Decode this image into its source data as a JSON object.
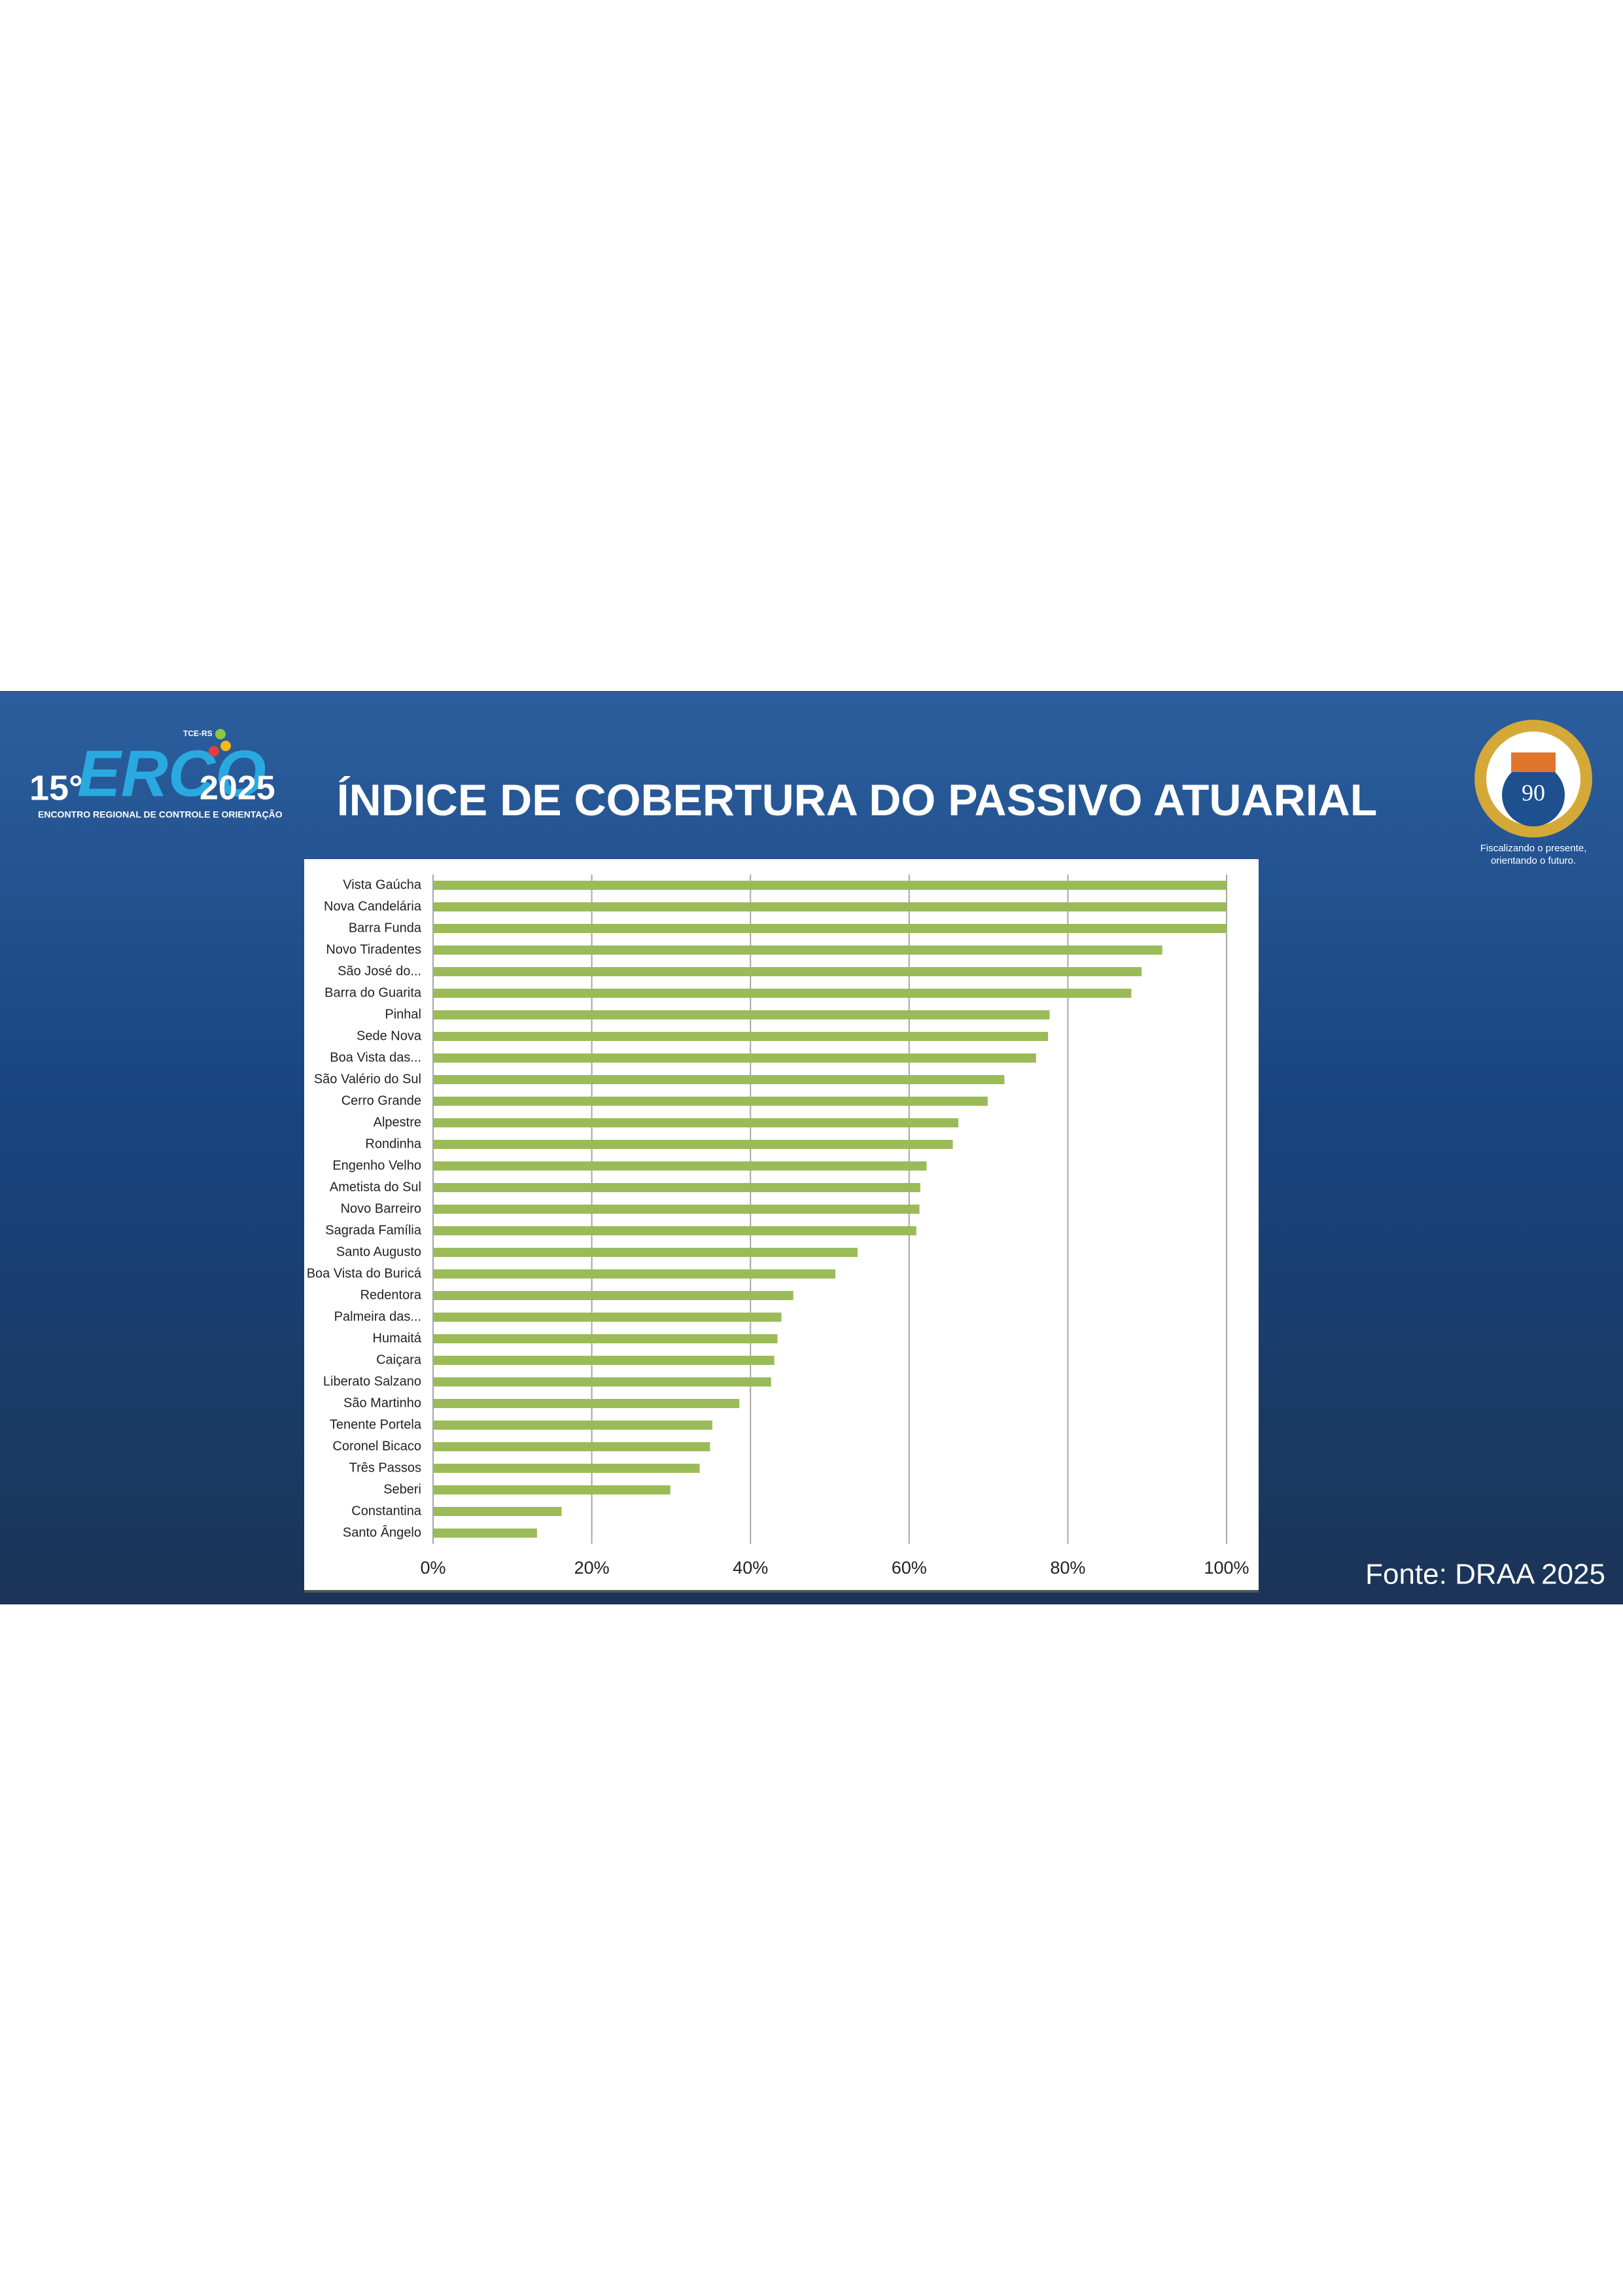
{
  "chart_data": {
    "type": "bar",
    "orientation": "horizontal",
    "title": "ÍNDICE DE COBERTURA DO PASSIVO ATUARIAL",
    "source": "Fonte: DRAA 2025",
    "categories": [
      "Vista Gaúcha",
      "Nova Candelária",
      "Barra Funda",
      "Novo Tiradentes",
      "São José do...",
      "Barra do Guarita",
      "Pinhal",
      "Sede Nova",
      "Boa Vista das...",
      "São Valério do Sul",
      "Cerro Grande",
      "Alpestre",
      "Rondinha",
      "Engenho Velho",
      "Ametista do Sul",
      "Novo Barreiro",
      "Sagrada Família",
      "Santo Augusto",
      "Boa Vista do Buricá",
      "Redentora",
      "Palmeira das...",
      "Humaitá",
      "Caiçara",
      "Liberato Salzano",
      "São Martinho",
      "Tenente Portela",
      "Coronel Bicaco",
      "Três Passos",
      "Seberi",
      "Constantina",
      "Santo Ângelo"
    ],
    "values": [
      100,
      100,
      100,
      91.9,
      89.3,
      88.0,
      77.7,
      77.5,
      76.0,
      72.0,
      69.9,
      66.2,
      65.5,
      62.2,
      61.4,
      61.3,
      60.9,
      53.5,
      50.7,
      45.4,
      43.9,
      43.4,
      43.0,
      42.6,
      38.6,
      35.2,
      34.9,
      33.6,
      29.9,
      16.2,
      13.1
    ],
    "color": "#9bbb59",
    "xlim": [
      0,
      100
    ],
    "xticks": [
      {
        "value": 0,
        "label": "0%"
      },
      {
        "value": 20,
        "label": "20%"
      },
      {
        "value": 40,
        "label": "40%"
      },
      {
        "value": 60,
        "label": "60%"
      },
      {
        "value": 80,
        "label": "80%"
      },
      {
        "value": 100,
        "label": "100%"
      }
    ],
    "grid": true
  },
  "logos": {
    "edition": "15°",
    "name": "ERCO",
    "year": "2025",
    "org": "TCE-RS",
    "subtitle": "ENCONTRO REGIONAL DE CONTROLE E ORIENTAÇÃO",
    "anniversary": "90",
    "tagline": [
      "Fiscalizando o presente,",
      "orientando o futuro."
    ]
  }
}
